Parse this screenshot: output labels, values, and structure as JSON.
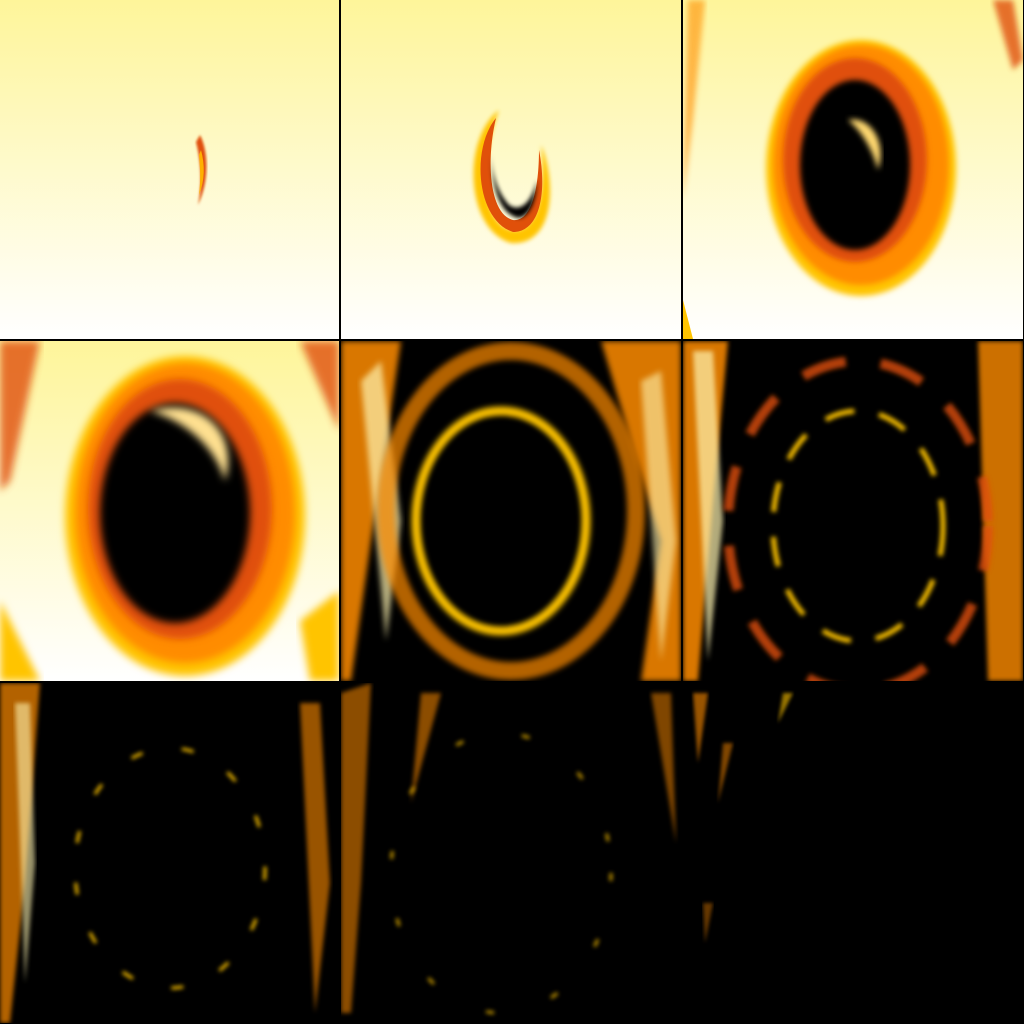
{
  "sprite_sheet": {
    "kind": "fire-vortex-animation",
    "columns": 3,
    "rows": 3,
    "frame_count": 9,
    "colors": {
      "sky_top": "#fef59a",
      "sky_bottom": "#ffffff",
      "void": "#000000",
      "flame_dark": "#e0500a",
      "flame_mid": "#ff8c00",
      "flame_bright": "#ffc400",
      "flame_glow": "#fff4b0",
      "border": "#000000"
    },
    "frames": [
      {
        "index": 1,
        "stage": "spark",
        "background": "sky"
      },
      {
        "index": 2,
        "stage": "crescent",
        "background": "sky"
      },
      {
        "index": 3,
        "stage": "vortex-forming",
        "background": "sky"
      },
      {
        "index": 4,
        "stage": "vortex-large",
        "background": "sky"
      },
      {
        "index": 5,
        "stage": "vortex-dark",
        "background": "void"
      },
      {
        "index": 6,
        "stage": "embers-ring",
        "background": "void"
      },
      {
        "index": 7,
        "stage": "embers-scatter",
        "background": "void"
      },
      {
        "index": 8,
        "stage": "embers-fading",
        "background": "void"
      },
      {
        "index": 9,
        "stage": "embers-last",
        "background": "void"
      }
    ]
  }
}
